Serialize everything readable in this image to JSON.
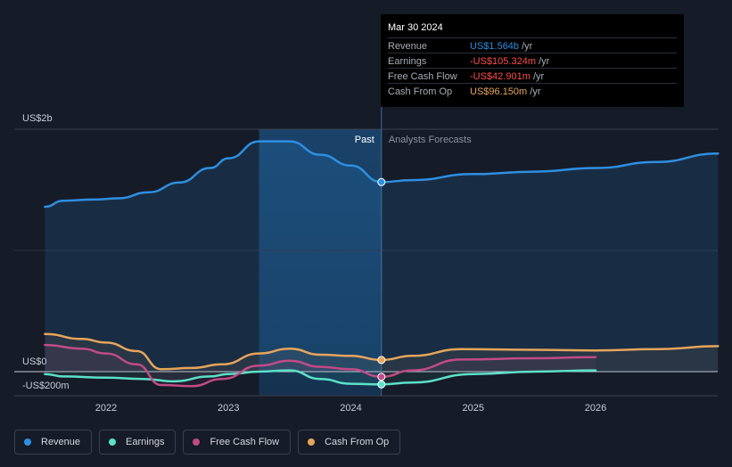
{
  "chart_data": {
    "type": "line",
    "y_axis": {
      "label_top": "US$2b",
      "label_zero": "US$0",
      "label_neg": "-US$200m",
      "ylim": [
        -200,
        2000
      ]
    },
    "x_ticks": [
      "2022",
      "2023",
      "2024",
      "2025",
      "2026"
    ],
    "divider": {
      "past_label": "Past",
      "forecast_label": "Analysts Forecasts"
    },
    "series": [
      {
        "name": "Revenue",
        "color": "#2e8fe0",
        "points": [
          [
            2021.5,
            1360
          ],
          [
            2021.65,
            1410
          ],
          [
            2021.9,
            1420
          ],
          [
            2022.1,
            1430
          ],
          [
            2022.35,
            1480
          ],
          [
            2022.6,
            1560
          ],
          [
            2022.85,
            1680
          ],
          [
            2023.0,
            1760
          ],
          [
            2023.25,
            1900
          ],
          [
            2023.5,
            1900
          ],
          [
            2023.75,
            1790
          ],
          [
            2024.0,
            1700
          ],
          [
            2024.25,
            1564
          ],
          [
            2024.5,
            1580
          ],
          [
            2025.0,
            1630
          ],
          [
            2025.5,
            1650
          ],
          [
            2026.0,
            1680
          ],
          [
            2026.5,
            1730
          ],
          [
            2027.0,
            1800
          ]
        ]
      },
      {
        "name": "Earnings",
        "color": "#5de0c8",
        "points": [
          [
            2021.5,
            -20
          ],
          [
            2021.65,
            -40
          ],
          [
            2022.0,
            -50
          ],
          [
            2022.3,
            -60
          ],
          [
            2022.55,
            -80
          ],
          [
            2022.85,
            -40
          ],
          [
            2023.0,
            -20
          ],
          [
            2023.25,
            0
          ],
          [
            2023.5,
            10
          ],
          [
            2023.75,
            -60
          ],
          [
            2024.0,
            -100
          ],
          [
            2024.25,
            -105.324
          ],
          [
            2024.5,
            -90
          ],
          [
            2025.0,
            -20
          ],
          [
            2025.5,
            0
          ],
          [
            2026.0,
            10
          ]
        ]
      },
      {
        "name": "Free Cash Flow",
        "color": "#c04b86",
        "points": [
          [
            2021.5,
            220
          ],
          [
            2021.8,
            190
          ],
          [
            2022.0,
            150
          ],
          [
            2022.25,
            60
          ],
          [
            2022.45,
            -110
          ],
          [
            2022.7,
            -120
          ],
          [
            2022.95,
            -60
          ],
          [
            2023.25,
            50
          ],
          [
            2023.5,
            90
          ],
          [
            2023.75,
            40
          ],
          [
            2024.0,
            20
          ],
          [
            2024.25,
            -42.901
          ],
          [
            2024.5,
            10
          ],
          [
            2024.9,
            100
          ],
          [
            2025.5,
            110
          ],
          [
            2026.0,
            120
          ]
        ]
      },
      {
        "name": "Cash From Op",
        "color": "#e6a55b",
        "points": [
          [
            2021.5,
            310
          ],
          [
            2021.8,
            270
          ],
          [
            2022.0,
            240
          ],
          [
            2022.25,
            170
          ],
          [
            2022.45,
            20
          ],
          [
            2022.7,
            30
          ],
          [
            2022.95,
            60
          ],
          [
            2023.25,
            150
          ],
          [
            2023.5,
            190
          ],
          [
            2023.75,
            140
          ],
          [
            2024.0,
            130
          ],
          [
            2024.25,
            96.15
          ],
          [
            2024.5,
            130
          ],
          [
            2024.9,
            185
          ],
          [
            2025.5,
            180
          ],
          [
            2026.0,
            175
          ],
          [
            2026.5,
            185
          ],
          [
            2027.0,
            210
          ]
        ]
      }
    ]
  },
  "tooltip": {
    "date": "Mar 30 2024",
    "rows": [
      {
        "label": "Revenue",
        "value": "US$1.564b",
        "unit": "/yr",
        "color": "#2e8fe0"
      },
      {
        "label": "Earnings",
        "value": "-US$105.324m",
        "unit": "/yr",
        "color": "#ff4d4d"
      },
      {
        "label": "Free Cash Flow",
        "value": "-US$42.901m",
        "unit": "/yr",
        "color": "#ff4d4d"
      },
      {
        "label": "Cash From Op",
        "value": "US$96.150m",
        "unit": "/yr",
        "color": "#e6a55b"
      }
    ]
  },
  "legend": [
    {
      "label": "Revenue",
      "color": "#2e8fe0"
    },
    {
      "label": "Earnings",
      "color": "#5de0c8"
    },
    {
      "label": "Free Cash Flow",
      "color": "#c04b86"
    },
    {
      "label": "Cash From Op",
      "color": "#e6a55b"
    }
  ]
}
